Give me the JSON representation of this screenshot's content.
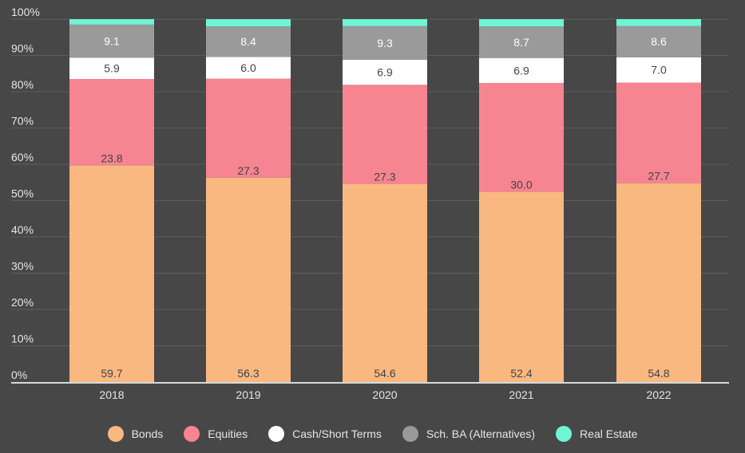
{
  "chart_data": {
    "type": "bar",
    "stacked": true,
    "normalized": true,
    "categories": [
      "2018",
      "2019",
      "2020",
      "2021",
      "2022"
    ],
    "series": [
      {
        "name": "Bonds",
        "values": [
          59.7,
          56.3,
          54.6,
          52.4,
          54.8
        ],
        "color": "#f9b880",
        "label_color": "#444444"
      },
      {
        "name": "Equities",
        "values": [
          23.8,
          27.3,
          27.3,
          30.0,
          27.7
        ],
        "color": "#f68491",
        "label_color": "#444444"
      },
      {
        "name": "Cash/Short Terms",
        "values": [
          5.9,
          6.0,
          6.9,
          6.9,
          7.0
        ],
        "color": "#ffffff",
        "label_color": "#444444"
      },
      {
        "name": "Sch. BA (Alternatives)",
        "values": [
          9.1,
          8.4,
          9.3,
          8.7,
          8.6
        ],
        "color": "#9a9a9a",
        "label_color": "#ffffff"
      },
      {
        "name": "Real Estate",
        "values": [
          1.5,
          2.0,
          1.9,
          2.0,
          1.9
        ],
        "color": "#6ff5d4",
        "label_color": "#444444"
      }
    ],
    "data_label_series": [
      "Bonds",
      "Equities",
      "Cash/Short Terms",
      "Sch. BA (Alternatives)"
    ],
    "ylim": [
      0,
      100
    ],
    "yticks": [
      "0%",
      "10%",
      "20%",
      "30%",
      "40%",
      "50%",
      "60%",
      "70%",
      "80%",
      "90%",
      "100%"
    ],
    "xlabel": "",
    "ylabel": "",
    "grid": true,
    "legend_position": "bottom-center",
    "colors": {
      "background": "#474747",
      "grid": "#5e5e5e",
      "axis": "#d9d9d9",
      "text": "#e6e6e6"
    }
  }
}
